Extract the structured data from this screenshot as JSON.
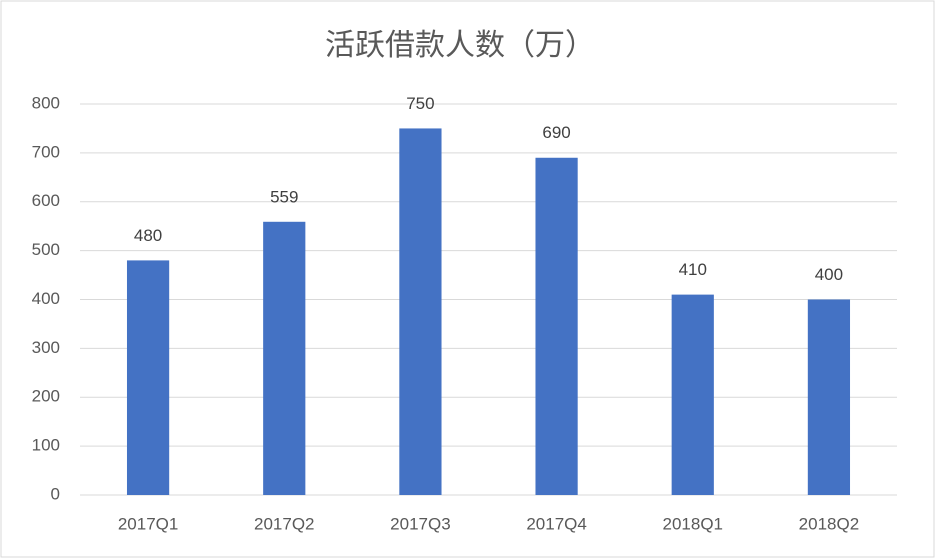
{
  "chart_data": {
    "type": "bar",
    "title": "活跃借款人数（万）",
    "categories": [
      "2017Q1",
      "2017Q2",
      "2017Q3",
      "2017Q4",
      "2018Q1",
      "2018Q2"
    ],
    "values": [
      480,
      559,
      750,
      690,
      410,
      400
    ],
    "color": "#4472c4",
    "ylim": [
      0,
      800
    ],
    "yticks": [
      0,
      100,
      200,
      300,
      400,
      500,
      600,
      700,
      800
    ],
    "grid": true
  }
}
